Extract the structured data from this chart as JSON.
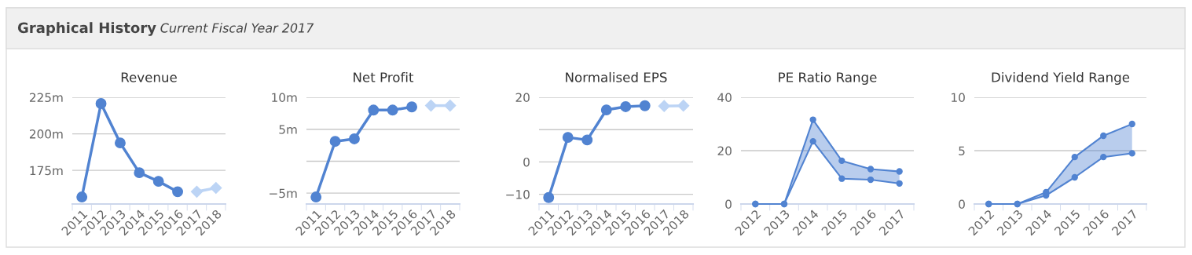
{
  "chart_data": [
    {
      "type": "other",
      "title": "Graphical History",
      "subtitle": "Current Fiscal Year 2017"
    },
    {
      "type": "line",
      "title": "Revenue",
      "categories": [
        "2011",
        "2012",
        "2013",
        "2014",
        "2015",
        "2016",
        "2017",
        "2018"
      ],
      "series": [
        {
          "color": "#5183d1",
          "marker": "circle",
          "values": [
            156.8,
            220.7,
            193.8,
            173.4,
            167.5,
            160.4,
            null,
            null
          ]
        },
        {
          "color": "#bcd4f5",
          "marker": "diamond",
          "values": [
            null,
            null,
            null,
            null,
            null,
            null,
            160.4,
            163
          ]
        }
      ],
      "ylim": [
        152,
        225
      ],
      "yticks": [
        {
          "value": 175,
          "label": "175m"
        },
        {
          "value": 200,
          "label": "200m"
        },
        {
          "value": 225,
          "label": "225m"
        }
      ],
      "grid": "y"
    },
    {
      "type": "line",
      "title": "Net Profit",
      "categories": [
        "2011",
        "2012",
        "2013",
        "2014",
        "2015",
        "2016",
        "2017",
        "2018"
      ],
      "series": [
        {
          "color": "#5183d1",
          "marker": "circle",
          "values": [
            -5.6,
            3.1,
            3.5,
            8.0,
            8.0,
            8.5,
            null,
            null
          ]
        },
        {
          "color": "#bcd4f5",
          "marker": "diamond",
          "values": [
            null,
            null,
            null,
            null,
            null,
            null,
            8.7,
            8.7
          ]
        }
      ],
      "ylim": [
        -6.7,
        10
      ],
      "yticks": [
        {
          "value": -5,
          "label": "−5m"
        },
        {
          "value": 0,
          "label": null
        },
        {
          "value": 5,
          "label": "5m"
        },
        {
          "value": 10,
          "label": "10m"
        }
      ],
      "grid": "y"
    },
    {
      "type": "line",
      "title": "Normalised EPS",
      "categories": [
        "2011",
        "2012",
        "2013",
        "2014",
        "2015",
        "2016",
        "2017",
        "2018"
      ],
      "series": [
        {
          "color": "#5183d1",
          "marker": "circle",
          "values": [
            -11,
            7.6,
            6.8,
            16.1,
            17.1,
            17.4,
            null,
            null
          ]
        },
        {
          "color": "#bcd4f5",
          "marker": "diamond",
          "values": [
            null,
            null,
            null,
            null,
            null,
            null,
            17.3,
            17.4
          ]
        }
      ],
      "ylim": [
        -13,
        20
      ],
      "yticks": [
        {
          "value": -10,
          "label": "−10"
        },
        0,
        {
          "value": 10,
          "label": null
        },
        20
      ],
      "grid": "y"
    },
    {
      "type": "line",
      "title": "PE Ratio Range",
      "categories": [
        "2012",
        "2013",
        "2014",
        "2015",
        "2016",
        "2017"
      ],
      "series": [
        {
          "color": "#5183d1",
          "marker": "circle",
          "values": [
            0,
            0,
            23.5,
            9.5,
            9.1,
            7.7
          ]
        },
        {
          "color": "#5183d1",
          "marker": "circle",
          "values": [
            0,
            0,
            31.6,
            16.2,
            13.1,
            12.2
          ],
          "lower": [
            0,
            0,
            23.5,
            9.5,
            9.1,
            7.7
          ],
          "upper": [
            0,
            0,
            31.6,
            16.2,
            13.1,
            12.2
          ]
        }
      ],
      "ylim": [
        0,
        40
      ],
      "yticks": [
        0,
        20,
        40
      ],
      "grid": "y"
    },
    {
      "type": "line",
      "title": "Dividend Yield Range",
      "categories": [
        "2012",
        "2013",
        "2014",
        "2015",
        "2016",
        "2017"
      ],
      "series": [
        {
          "color": "#5183d1",
          "marker": "circle",
          "values": [
            0,
            0,
            0.8,
            2.5,
            4.4,
            4.75
          ]
        },
        {
          "color": "#5183d1",
          "marker": "circle",
          "values": [
            0,
            0,
            1.1,
            4.4,
            6.4,
            7.5
          ],
          "lower": [
            0,
            0,
            0.8,
            2.5,
            4.4,
            4.75
          ],
          "upper": [
            0,
            0,
            1.1,
            4.4,
            6.4,
            7.5
          ]
        }
      ],
      "ylim": [
        0,
        10
      ],
      "yticks": [
        0,
        5,
        10
      ],
      "grid": "y"
    }
  ]
}
